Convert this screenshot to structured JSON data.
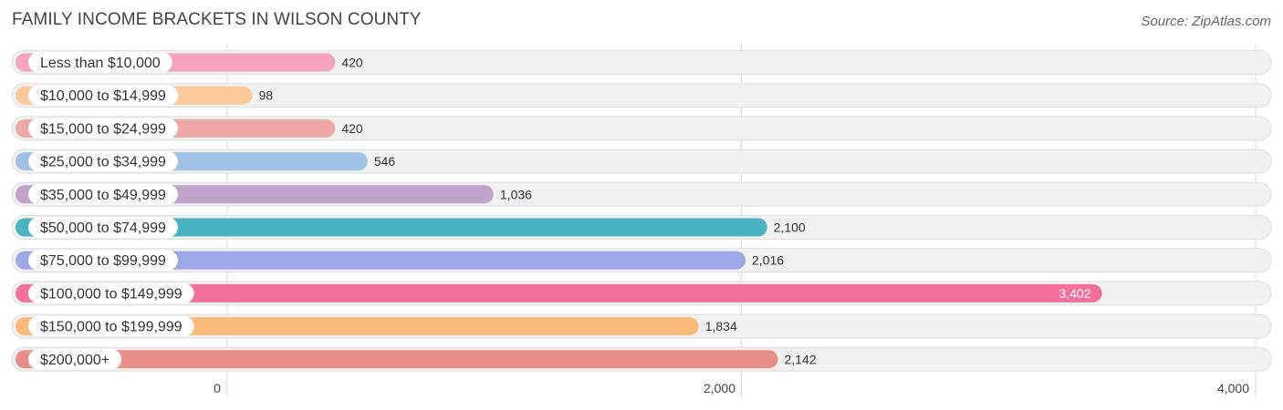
{
  "chart_data": {
    "type": "bar",
    "orientation": "horizontal",
    "title": "FAMILY INCOME BRACKETS IN WILSON COUNTY",
    "source": "Source: ZipAtlas.com",
    "categories": [
      "Less than $10,000",
      "$10,000 to $14,999",
      "$15,000 to $24,999",
      "$25,000 to $34,999",
      "$35,000 to $49,999",
      "$50,000 to $74,999",
      "$75,000 to $99,999",
      "$100,000 to $149,999",
      "$150,000 to $199,999",
      "$200,000+"
    ],
    "values": [
      420,
      98,
      420,
      546,
      1036,
      2100,
      2016,
      3402,
      1834,
      2142
    ],
    "value_labels": [
      "420",
      "98",
      "420",
      "546",
      "1,036",
      "2,100",
      "2,016",
      "3,402",
      "1,834",
      "2,142"
    ],
    "colors": [
      "#f5a3bf",
      "#fbc99a",
      "#eea9a6",
      "#9fc1e8",
      "#c0a3cb",
      "#4ab3c3",
      "#9ea8e6",
      "#f2709a",
      "#f8bb7c",
      "#e88e89"
    ],
    "xlim": [
      0,
      4000
    ],
    "xticks": [
      0,
      2000,
      4000
    ],
    "xtick_labels": [
      "0",
      "2,000",
      "4,000"
    ],
    "grid": true,
    "legend": "none"
  }
}
